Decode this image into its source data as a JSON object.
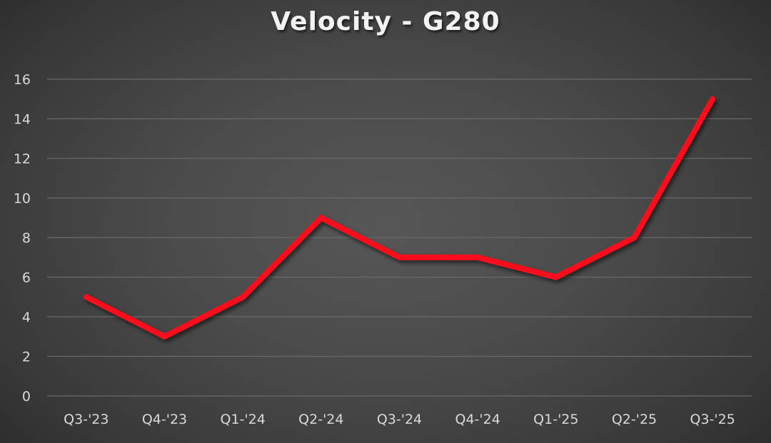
{
  "chart_data": {
    "type": "line",
    "title": "Velocity - G280",
    "xlabel": "",
    "ylabel": "",
    "categories": [
      "Q3-'23",
      "Q4-'23",
      "Q1-'24",
      "Q2-'24",
      "Q3-'24",
      "Q4-'24",
      "Q1-'25",
      "Q2-'25",
      "Q3-'25"
    ],
    "series": [
      {
        "name": "Velocity",
        "values": [
          5,
          3,
          5,
          9,
          7,
          7,
          6,
          8,
          15
        ],
        "color": "#FF0A1A"
      }
    ],
    "ylim": [
      0,
      16
    ],
    "yticks": [
      0,
      2,
      4,
      6,
      8,
      10,
      12,
      14,
      16
    ],
    "grid": true,
    "legend": "none"
  }
}
